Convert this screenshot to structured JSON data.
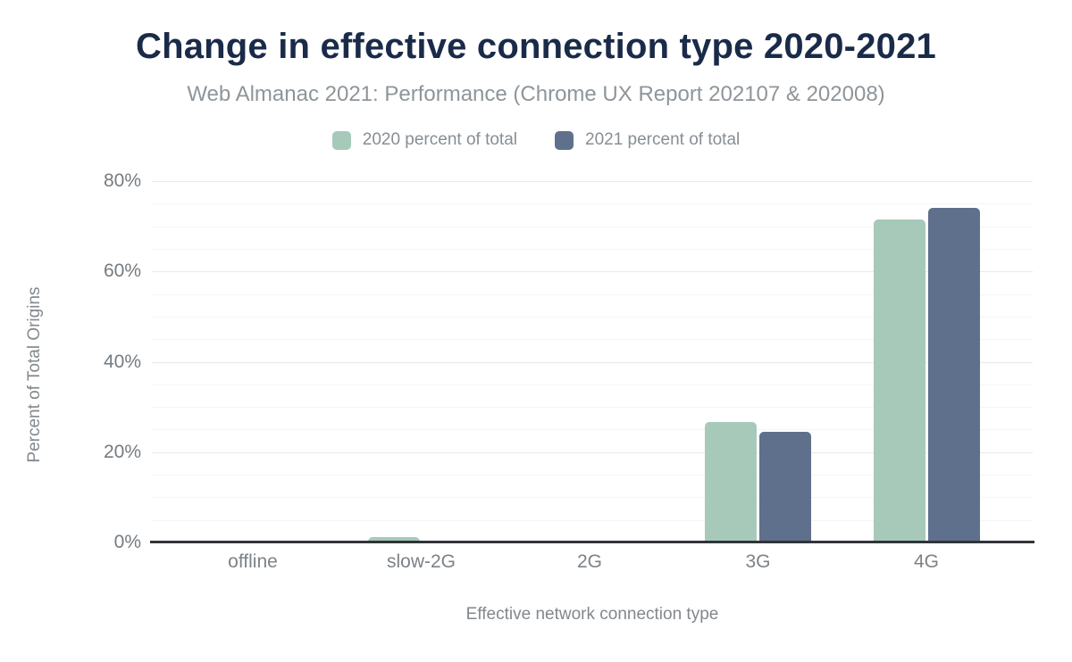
{
  "header": {
    "title": "Change in effective connection type 2020-2021",
    "subtitle": "Web Almanac 2021: Performance (Chrome UX Report 202107 & 202008)"
  },
  "chart_data": {
    "type": "bar",
    "title": "Change in effective connection type 2020-2021",
    "subtitle": "Web Almanac 2021: Performance (Chrome UX Report 202107 & 202008)",
    "categories": [
      "offline",
      "slow-2G",
      "2G",
      "3G",
      "4G"
    ],
    "series": [
      {
        "name": "2020 percent of total",
        "color": "#a7c9ba",
        "values": [
          0.0,
          1.1,
          0.5,
          26.6,
          71.5
        ]
      },
      {
        "name": "2021 percent of total",
        "color": "#5f708c",
        "values": [
          0.0,
          0.5,
          0.1,
          24.6,
          74.0
        ]
      }
    ],
    "xlabel": "Effective network connection type",
    "ylabel": "Percent of Total Origins",
    "ylim": [
      0,
      80
    ],
    "ytick_major_step": 20,
    "ytick_minor_step": 5,
    "ytick_suffix": "%",
    "grid": true,
    "legend_position": "top"
  },
  "colors": {
    "title": "#1a2b49",
    "subtitle": "#8e959a",
    "axis_line": "#313438",
    "gridline_major": "#e8e9ea",
    "gridline_minor": "#f4f5f5",
    "series_2020": "#a7c9ba",
    "series_2021": "#5f708c"
  }
}
